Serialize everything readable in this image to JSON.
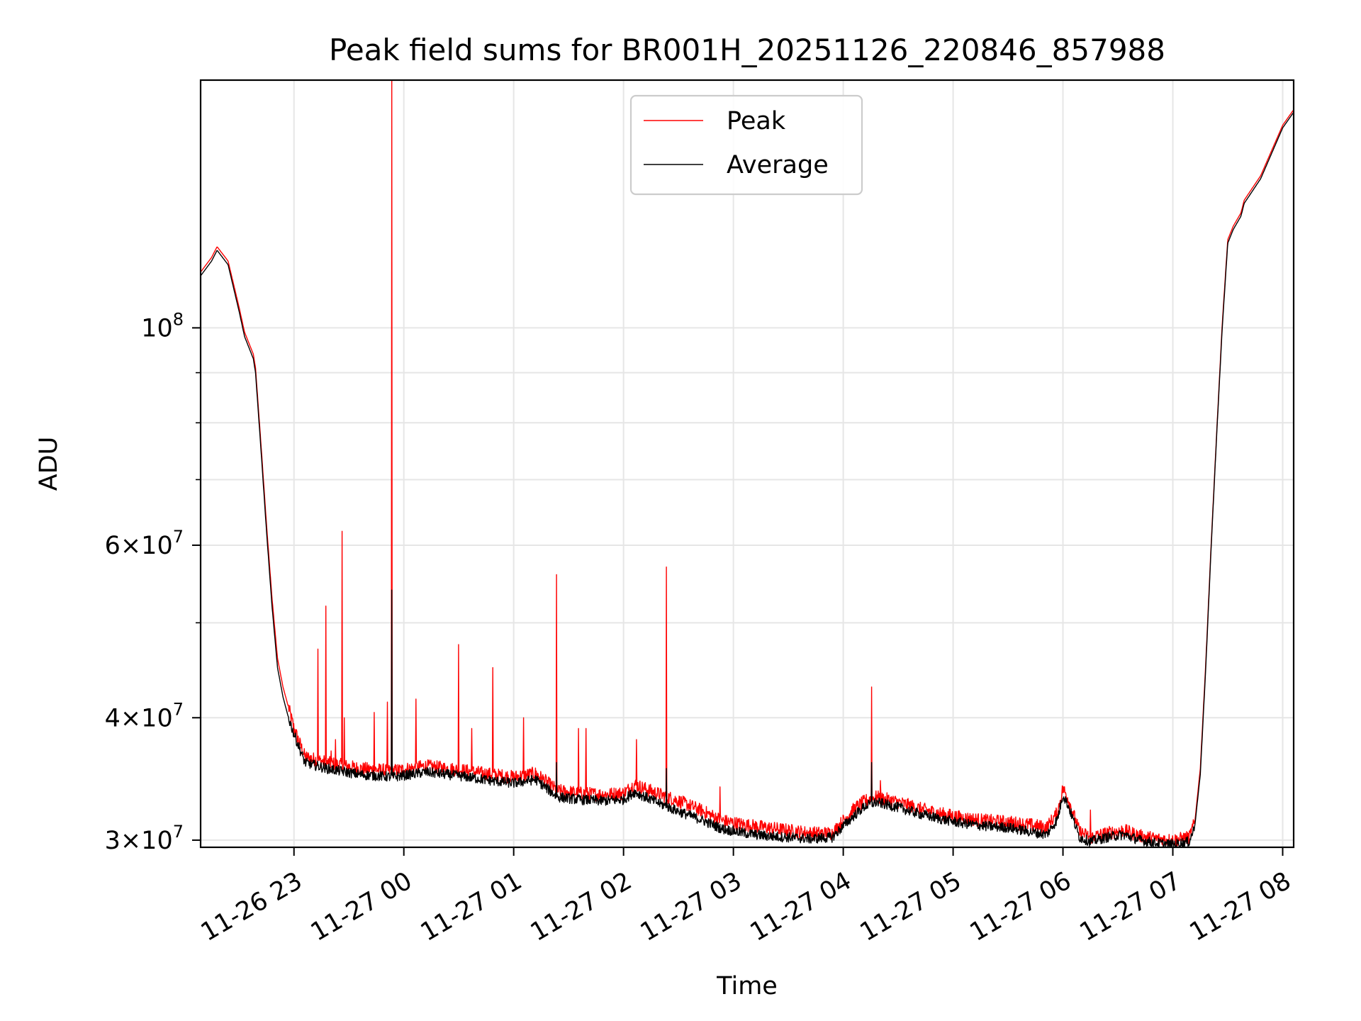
{
  "chart_data": {
    "type": "line",
    "title": "Peak field sums for BR001H_20251126_220846_857988",
    "xlabel": "Time",
    "ylabel": "ADU",
    "yscale": "log",
    "ylim": [
      29500000,
      179000000
    ],
    "xlim_hours": [
      22.15,
      32.1
    ],
    "grid": true,
    "legend": {
      "position": "upper-center",
      "entries": [
        "Peak",
        "Average"
      ]
    },
    "x_ticks": [
      {
        "hour": 23,
        "label": "11-26 23"
      },
      {
        "hour": 24,
        "label": "11-27 00"
      },
      {
        "hour": 25,
        "label": "11-27 01"
      },
      {
        "hour": 26,
        "label": "11-27 02"
      },
      {
        "hour": 27,
        "label": "11-27 03"
      },
      {
        "hour": 28,
        "label": "11-27 04"
      },
      {
        "hour": 29,
        "label": "11-27 05"
      },
      {
        "hour": 30,
        "label": "11-27 06"
      },
      {
        "hour": 31,
        "label": "11-27 07"
      },
      {
        "hour": 32,
        "label": "11-27 08"
      }
    ],
    "y_ticks": [
      {
        "value": 30000000,
        "base": "3×10",
        "exp": "7"
      },
      {
        "value": 40000000,
        "base": "4×10",
        "exp": "7"
      },
      {
        "value": 60000000,
        "base": "6×10",
        "exp": "7"
      },
      {
        "value": 100000000,
        "base": "10",
        "exp": "8"
      }
    ],
    "y_minor_ticks": [
      50000000,
      70000000,
      80000000,
      90000000
    ],
    "series": [
      {
        "name": "Average",
        "color": "#000000",
        "x": [
          22.15,
          22.25,
          22.3,
          22.4,
          22.5,
          22.55,
          22.63,
          22.65,
          22.7,
          22.75,
          22.8,
          22.85,
          22.9,
          22.95,
          23.0,
          23.1,
          23.3,
          23.6,
          23.9,
          24.2,
          24.5,
          24.8,
          25.0,
          25.2,
          25.4,
          25.6,
          25.8,
          26.0,
          26.1,
          26.3,
          26.5,
          26.7,
          26.9,
          27.1,
          27.3,
          27.5,
          27.7,
          27.9,
          28.0,
          28.1,
          28.2,
          28.3,
          28.5,
          28.7,
          28.9,
          29.1,
          29.3,
          29.5,
          29.7,
          29.85,
          29.95,
          30.0,
          30.05,
          30.15,
          30.25,
          30.4,
          30.55,
          30.7,
          30.85,
          31.0,
          31.15,
          31.2,
          31.25,
          31.3,
          31.35,
          31.4,
          31.45,
          31.5,
          31.55,
          31.62,
          31.65,
          31.8,
          32.0,
          32.1
        ],
        "y": [
          113000000,
          117000000,
          120000000,
          116000000,
          104000000,
          98000000,
          93000000,
          90000000,
          75000000,
          62000000,
          52000000,
          45000000,
          42000000,
          40000000,
          38500000,
          36000000,
          35500000,
          35000000,
          34800000,
          35200000,
          34900000,
          34500000,
          34300000,
          34600000,
          33200000,
          33000000,
          32900000,
          33000000,
          33600000,
          32800000,
          32100000,
          31500000,
          30800000,
          30500000,
          30300000,
          30200000,
          30100000,
          30200000,
          31000000,
          31800000,
          32500000,
          32800000,
          32400000,
          31900000,
          31500000,
          31200000,
          31000000,
          30900000,
          30600000,
          30400000,
          31500000,
          33400000,
          32500000,
          30200000,
          29900000,
          30200000,
          30400000,
          30000000,
          29800000,
          29700000,
          29900000,
          31000000,
          35000000,
          45000000,
          60000000,
          78000000,
          100000000,
          122000000,
          126000000,
          130000000,
          134000000,
          142000000,
          160000000,
          166000000
        ]
      },
      {
        "name": "Peak",
        "color": "#ff0000",
        "x": [
          22.15,
          22.25,
          22.3,
          22.4,
          22.5,
          22.55,
          22.63,
          22.65,
          22.7,
          22.75,
          22.8,
          22.85,
          22.9,
          22.95,
          23.0,
          23.1,
          23.3,
          23.6,
          23.9,
          24.2,
          24.5,
          24.8,
          25.0,
          25.2,
          25.4,
          25.6,
          25.8,
          26.0,
          26.1,
          26.3,
          26.5,
          26.7,
          26.9,
          27.1,
          27.3,
          27.5,
          27.7,
          27.9,
          28.0,
          28.1,
          28.2,
          28.3,
          28.5,
          28.7,
          28.9,
          29.1,
          29.3,
          29.5,
          29.7,
          29.85,
          29.95,
          30.0,
          30.05,
          30.15,
          30.25,
          30.4,
          30.55,
          30.7,
          30.85,
          31.0,
          31.15,
          31.2,
          31.25,
          31.3,
          31.35,
          31.4,
          31.45,
          31.5,
          31.55,
          31.62,
          31.65,
          31.8,
          32.0,
          32.1
        ],
        "y": [
          114000000,
          118000000,
          121000000,
          117000000,
          105000000,
          99000000,
          94000000,
          91000000,
          76000000,
          63000000,
          53000000,
          46000000,
          43000000,
          41000000,
          39000000,
          36500000,
          36000000,
          35500000,
          35300000,
          35700000,
          35400000,
          35000000,
          34800000,
          35100000,
          33700000,
          33500000,
          33400000,
          33500000,
          34200000,
          33500000,
          32900000,
          32200000,
          31400000,
          31100000,
          30900000,
          30700000,
          30500000,
          30500000,
          31400000,
          32300000,
          32900000,
          33200000,
          32800000,
          32300000,
          31900000,
          31600000,
          31400000,
          31300000,
          31100000,
          30900000,
          32000000,
          33900000,
          33000000,
          30600000,
          30200000,
          30500000,
          30700000,
          30300000,
          30100000,
          30000000,
          30200000,
          31300000,
          35500000,
          45500000,
          60500000,
          78500000,
          101000000,
          123000000,
          127000000,
          131000000,
          135000000,
          143000000,
          161000000,
          167000000
        ]
      }
    ],
    "peak_spikes": [
      {
        "hour": 23.22,
        "value": 47000000
      },
      {
        "hour": 23.29,
        "value": 52000000
      },
      {
        "hour": 23.34,
        "value": 37000000
      },
      {
        "hour": 23.38,
        "value": 38000000
      },
      {
        "hour": 23.44,
        "value": 62000000
      },
      {
        "hour": 23.46,
        "value": 40000000
      },
      {
        "hour": 23.73,
        "value": 40500000
      },
      {
        "hour": 23.85,
        "value": 41500000
      },
      {
        "hour": 23.89,
        "value": 179000000
      },
      {
        "hour": 24.11,
        "value": 41800000
      },
      {
        "hour": 24.5,
        "value": 47500000
      },
      {
        "hour": 24.62,
        "value": 39000000
      },
      {
        "hour": 24.81,
        "value": 45000000
      },
      {
        "hour": 25.09,
        "value": 40000000
      },
      {
        "hour": 25.39,
        "value": 56000000
      },
      {
        "hour": 25.59,
        "value": 39000000
      },
      {
        "hour": 25.66,
        "value": 39000000
      },
      {
        "hour": 26.12,
        "value": 38000000
      },
      {
        "hour": 26.39,
        "value": 57000000
      },
      {
        "hour": 26.88,
        "value": 34000000
      },
      {
        "hour": 28.26,
        "value": 43000000
      },
      {
        "hour": 28.34,
        "value": 34500000
      },
      {
        "hour": 30.25,
        "value": 32200000
      }
    ],
    "avg_spikes": [
      {
        "hour": 23.89,
        "value": 54000000
      },
      {
        "hour": 25.39,
        "value": 36000000
      },
      {
        "hour": 26.39,
        "value": 35500000
      },
      {
        "hour": 28.26,
        "value": 36000000
      }
    ]
  }
}
